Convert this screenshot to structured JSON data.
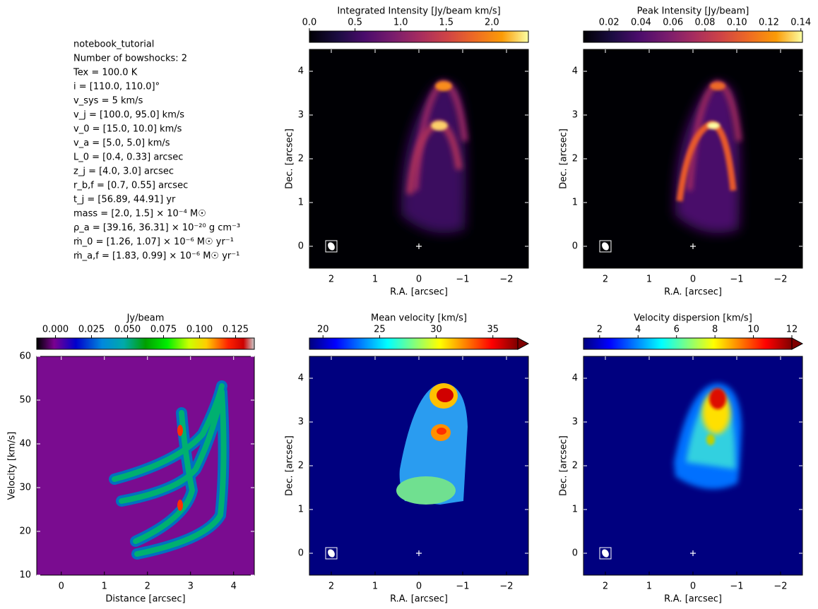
{
  "parameters": [
    "notebook_tutorial",
    "Number of bowshocks: 2",
    "Tex = 100.0 K",
    "i = [110.0, 110.0]°",
    "v_sys = 5 km/s",
    "v_j = [100.0, 95.0] km/s",
    "v_0 = [15.0, 10.0] km/s",
    "v_a = [5.0, 5.0] km/s",
    "L_0 = [0.4, 0.33] arcsec",
    "z_j = [4.0, 3.0] arcsec",
    "r_b,f = [0.7, 0.55] arcsec",
    "t_j = [56.89, 44.91] yr",
    "mass = [2.0, 1.5] × 10⁻⁴ M☉",
    "ρ_a = [39.16, 36.31] × 10⁻²⁰ g cm⁻³",
    "ṁ_0 = [1.26, 1.07] × 10⁻⁶ M☉ yr⁻¹",
    "ṁ_a,f = [1.83, 0.99] × 10⁻⁶ M☉ yr⁻¹"
  ],
  "chart_data": [
    {
      "type": "image",
      "colorbar_label": "Integrated Intensity [Jy/beam km/s]",
      "colormap": "inferno",
      "clim": [
        0,
        2.4
      ],
      "colorbar_ticks": [
        {
          "value": 0,
          "label": "0.0"
        },
        0.5,
        {
          "value": 1,
          "label": "1.0"
        },
        1.5,
        {
          "value": 2,
          "label": "2.0"
        }
      ],
      "xlabel": "R.A. [arcsec]",
      "ylabel": "Dec. [arcsec]",
      "xlim": [
        2.5,
        -2.5
      ],
      "ylim": [
        -0.5,
        4.5
      ],
      "xticks": [
        2,
        1,
        0,
        {
          "value": -1,
          "label": "−1"
        },
        {
          "value": -2,
          "label": "−2"
        }
      ],
      "yticks": [
        0,
        1,
        2,
        3,
        4
      ]
    },
    {
      "type": "image",
      "colorbar_label": "Peak Intensity [Jy/beam]",
      "colormap": "inferno",
      "clim": [
        0.004,
        0.141
      ],
      "colorbar_ticks": [
        0.02,
        0.04,
        0.06,
        0.08,
        {
          "value": 0.1,
          "label": "0.10"
        },
        0.12,
        0.14
      ],
      "xlabel": "R.A. [arcsec]",
      "ylabel": "Dec. [arcsec]",
      "xlim": [
        2.5,
        -2.5
      ],
      "ylim": [
        -0.5,
        4.5
      ],
      "xticks": [
        2,
        1,
        0,
        {
          "value": -1,
          "label": "−1"
        },
        {
          "value": -2,
          "label": "−2"
        }
      ],
      "yticks": [
        0,
        1,
        2,
        3,
        4
      ]
    },
    {
      "type": "image",
      "colorbar_label": "Jy/beam",
      "colormap": "nipy_spectral",
      "clim": [
        -0.013,
        0.138
      ],
      "colorbar_ticks": [
        {
          "value": 0,
          "label": "0.000"
        },
        {
          "value": 0.025,
          "label": "0.025"
        },
        {
          "value": 0.05,
          "label": "0.050"
        },
        {
          "value": 0.075,
          "label": "0.075"
        },
        {
          "value": 0.1,
          "label": "0.100"
        },
        {
          "value": 0.125,
          "label": "0.125"
        }
      ],
      "xlabel": "Distance [arcsec]",
      "ylabel": "Velocity [km/s]",
      "xlim": [
        -0.57,
        4.48
      ],
      "ylim": [
        10,
        60
      ],
      "xticks": [
        0,
        1,
        2,
        3,
        4
      ],
      "yticks": [
        10,
        20,
        30,
        40,
        50,
        60
      ]
    },
    {
      "type": "image",
      "colorbar_label": "Mean velocity [km/s]",
      "colormap": "jet",
      "clim": [
        18.8,
        37.2
      ],
      "colorbar_extend": "max",
      "colorbar_ticks": [
        20,
        25,
        30,
        35
      ],
      "xlabel": "R.A. [arcsec]",
      "ylabel": "Dec. [arcsec]",
      "xlim": [
        2.5,
        -2.5
      ],
      "ylim": [
        -0.5,
        4.5
      ],
      "xticks": [
        2,
        1,
        0,
        {
          "value": -1,
          "label": "−1"
        },
        {
          "value": -2,
          "label": "−2"
        }
      ],
      "yticks": [
        0,
        1,
        2,
        3,
        4
      ]
    },
    {
      "type": "image",
      "colorbar_label": "Velocity dispersion [km/s]",
      "colormap": "jet",
      "clim": [
        1.16,
        12.0
      ],
      "colorbar_extend": "max",
      "colorbar_ticks": [
        2,
        4,
        6,
        8,
        10,
        12
      ],
      "xlabel": "R.A. [arcsec]",
      "ylabel": "Dec. [arcsec]",
      "xlim": [
        2.5,
        -2.5
      ],
      "ylim": [
        -0.5,
        4.5
      ],
      "xticks": [
        2,
        1,
        0,
        {
          "value": -1,
          "label": "−1"
        },
        {
          "value": -2,
          "label": "−2"
        }
      ],
      "yticks": [
        0,
        1,
        2,
        3,
        4
      ]
    }
  ]
}
